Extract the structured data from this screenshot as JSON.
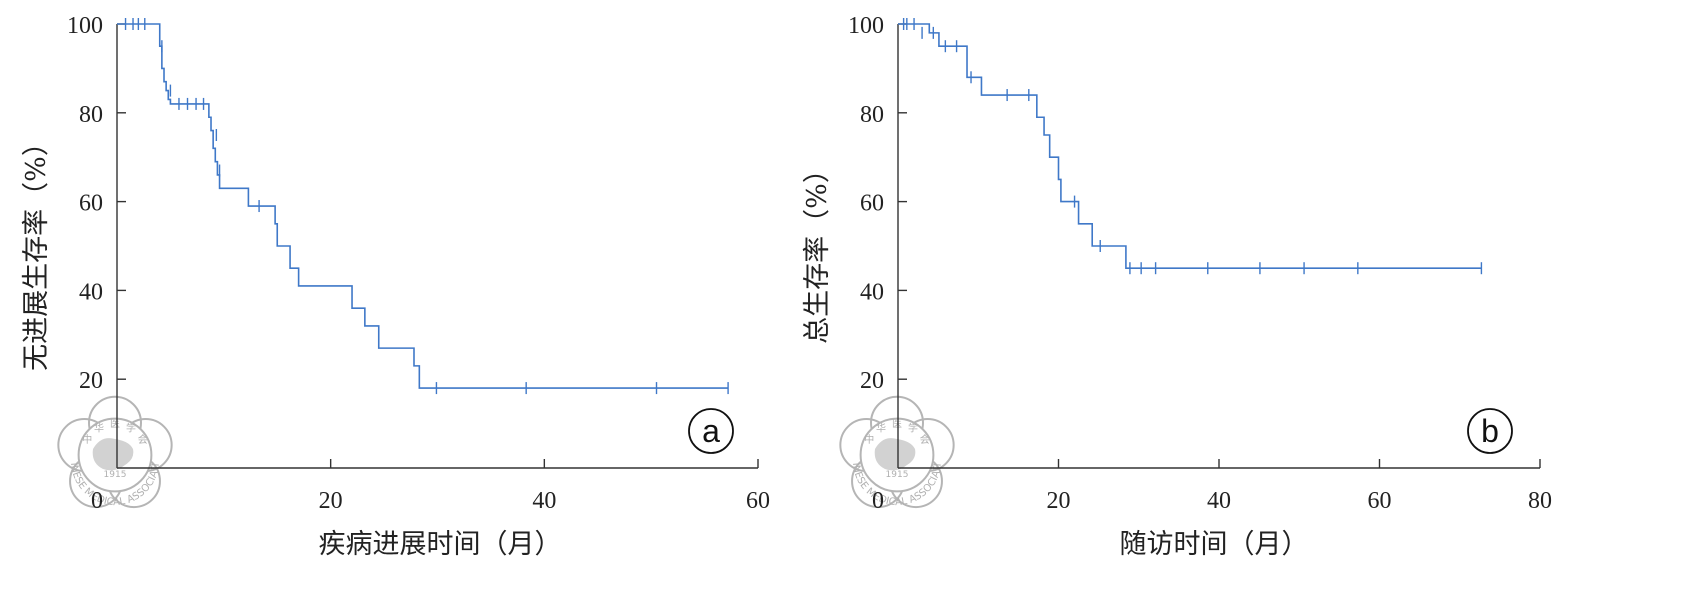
{
  "chart_data": [
    {
      "type": "line",
      "step": true,
      "panel_label": "a",
      "xlabel": "疾病进展时间（月）",
      "ylabel": "无进展生存率（%）",
      "xlim": [
        0,
        60
      ],
      "ylim": [
        0,
        100
      ],
      "xticks": [
        0,
        20,
        40,
        60
      ],
      "yticks": [
        20,
        40,
        60,
        80,
        100
      ],
      "series": [
        {
          "color": "#3f78c8",
          "x": [
            0,
            4.0,
            4.2,
            4.4,
            4.6,
            4.8,
            5.0,
            8.6,
            8.8,
            9.0,
            9.2,
            9.4,
            9.6,
            12.3,
            14.8,
            15.0,
            16.2,
            17.0,
            22.0,
            23.2,
            24.5,
            27.8,
            28.3
          ],
          "y": [
            100,
            95,
            90,
            87,
            85,
            83,
            82,
            79,
            76,
            72,
            69,
            66,
            63,
            59,
            55,
            50,
            45,
            41,
            36,
            32,
            27,
            23,
            18
          ]
        }
      ],
      "censored": [
        {
          "x": 0.8,
          "y": 100
        },
        {
          "x": 1.5,
          "y": 100
        },
        {
          "x": 2.0,
          "y": 100
        },
        {
          "x": 2.6,
          "y": 100
        },
        {
          "x": 4.2,
          "y": 95
        },
        {
          "x": 5.0,
          "y": 85
        },
        {
          "x": 5.8,
          "y": 82
        },
        {
          "x": 6.6,
          "y": 82
        },
        {
          "x": 7.4,
          "y": 82
        },
        {
          "x": 8.1,
          "y": 82
        },
        {
          "x": 9.3,
          "y": 75
        },
        {
          "x": 9.6,
          "y": 67
        },
        {
          "x": 13.3,
          "y": 59
        },
        {
          "x": 29.9,
          "y": 18
        },
        {
          "x": 38.3,
          "y": 18
        },
        {
          "x": 50.5,
          "y": 18
        },
        {
          "x": 57.2,
          "y": 18
        }
      ],
      "x_end": 57.2
    },
    {
      "type": "line",
      "step": true,
      "panel_label": "b",
      "xlabel": "随访时间（月）",
      "ylabel": "总生存率（%）",
      "xlim": [
        0,
        80
      ],
      "ylim": [
        0,
        100
      ],
      "xticks": [
        0,
        20,
        40,
        60,
        80
      ],
      "yticks": [
        20,
        40,
        60,
        80,
        100
      ],
      "series": [
        {
          "color": "#3f78c8",
          "x": [
            0,
            3.9,
            5.1,
            8.6,
            10.4,
            17.3,
            18.2,
            18.9,
            19.2,
            20.0,
            20.3,
            22.5,
            24.2,
            28.4
          ],
          "y": [
            100,
            98,
            95,
            88,
            84,
            79,
            75,
            70,
            70,
            65,
            60,
            55,
            50,
            45
          ]
        }
      ],
      "censored": [
        {
          "x": 0.7,
          "y": 100
        },
        {
          "x": 1.1,
          "y": 100
        },
        {
          "x": 2.0,
          "y": 100
        },
        {
          "x": 3.0,
          "y": 98
        },
        {
          "x": 4.4,
          "y": 98
        },
        {
          "x": 5.9,
          "y": 95
        },
        {
          "x": 7.3,
          "y": 95
        },
        {
          "x": 9.1,
          "y": 88
        },
        {
          "x": 13.6,
          "y": 84
        },
        {
          "x": 16.3,
          "y": 84
        },
        {
          "x": 22.0,
          "y": 60
        },
        {
          "x": 25.2,
          "y": 50
        },
        {
          "x": 28.9,
          "y": 45
        },
        {
          "x": 30.3,
          "y": 45
        },
        {
          "x": 32.1,
          "y": 45
        },
        {
          "x": 38.6,
          "y": 45
        },
        {
          "x": 45.1,
          "y": 45
        },
        {
          "x": 50.6,
          "y": 45
        },
        {
          "x": 57.3,
          "y": 45
        },
        {
          "x": 72.7,
          "y": 45
        }
      ],
      "x_end": 72.7
    }
  ],
  "watermark": {
    "top_chars": [
      "中",
      "华",
      "医",
      "学",
      "会"
    ],
    "year": "1915",
    "text": "CHINESE MEDICAL ASSOCIATION"
  }
}
